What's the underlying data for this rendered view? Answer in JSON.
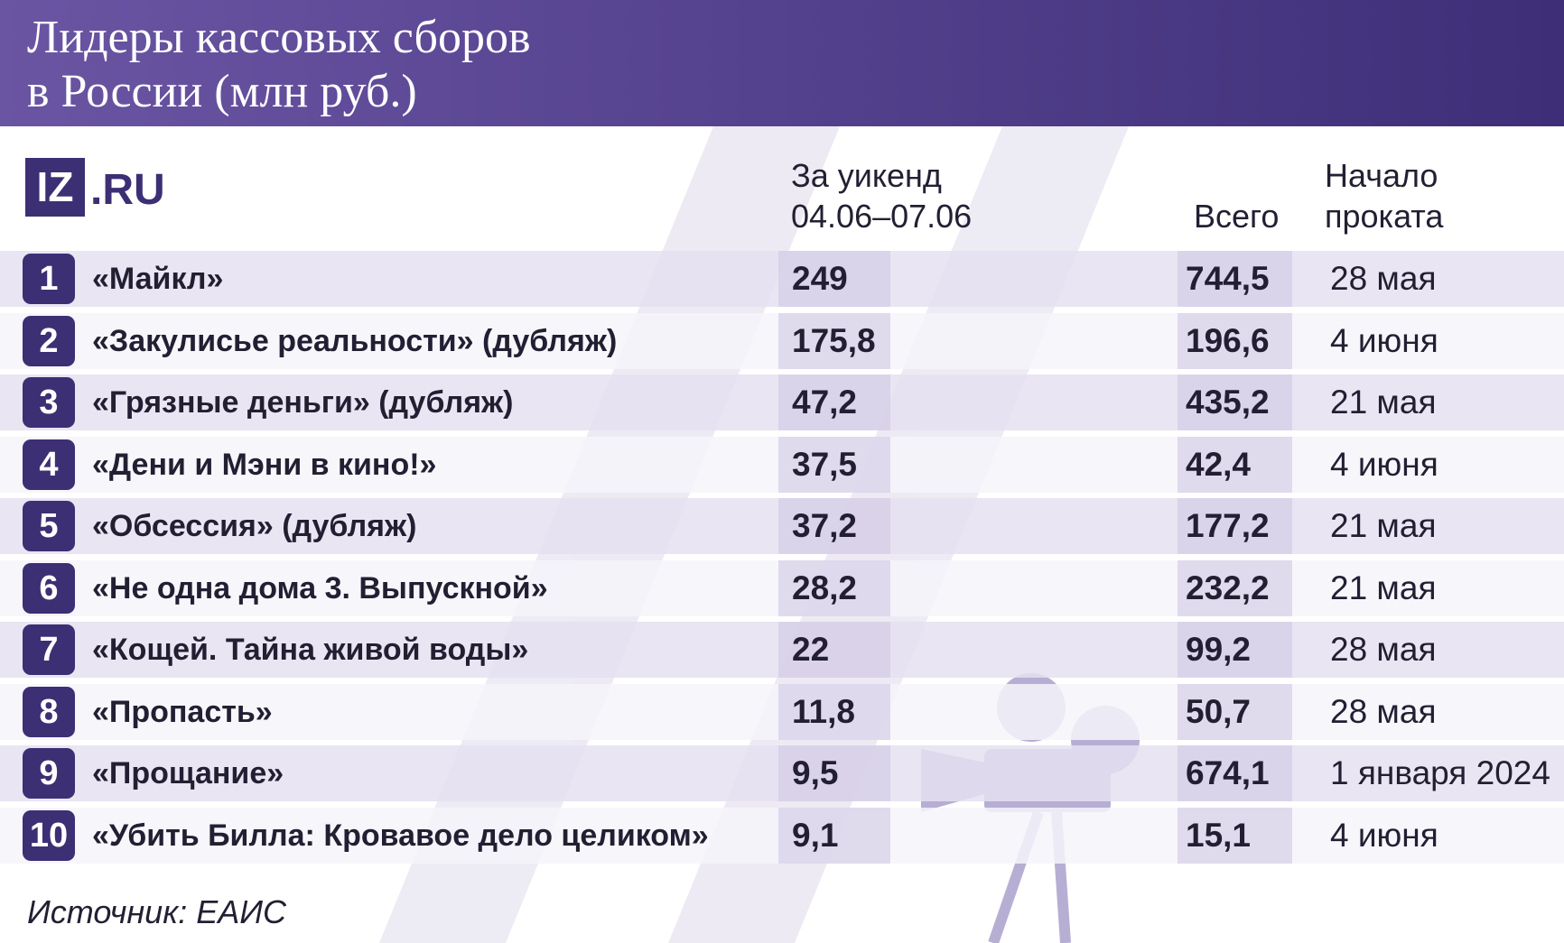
{
  "header": {
    "title_lines": [
      "Лидеры кассовых сборов",
      "в России (млн руб.)"
    ]
  },
  "logo": {
    "mark": "IZ",
    "domain": ".RU"
  },
  "table": {
    "columns": {
      "weekend": [
        "За уикенд",
        "04.06–07.06"
      ],
      "total": "Всего",
      "start": [
        "Начало",
        "проката"
      ]
    },
    "rows": [
      {
        "rank": 1,
        "title": "«Майкл»",
        "weekend": "249",
        "total": "744,5",
        "start": "28 мая"
      },
      {
        "rank": 2,
        "title": "«Закулисье реальности» (дубляж)",
        "weekend": "175,8",
        "total": "196,6",
        "start": "4 июня"
      },
      {
        "rank": 3,
        "title": "«Грязные деньги» (дубляж)",
        "weekend": "47,2",
        "total": "435,2",
        "start": "21 мая"
      },
      {
        "rank": 4,
        "title": "«Дени и Мэни в кино!»",
        "weekend": "37,5",
        "total": "42,4",
        "start": "4 июня"
      },
      {
        "rank": 5,
        "title": "«Обсессия» (дубляж)",
        "weekend": "37,2",
        "total": "177,2",
        "start": "21 мая"
      },
      {
        "rank": 6,
        "title": "«Не одна дома 3. Выпускной»",
        "weekend": "28,2",
        "total": "232,2",
        "start": "21 мая"
      },
      {
        "rank": 7,
        "title": "«Кощей. Тайна живой воды»",
        "weekend": "22",
        "total": "99,2",
        "start": "28 мая"
      },
      {
        "rank": 8,
        "title": "«Пропасть»",
        "weekend": "11,8",
        "total": "50,7",
        "start": "28 мая"
      },
      {
        "rank": 9,
        "title": "«Прощание»",
        "weekend": "9,5",
        "total": "674,1",
        "start": "1 января 2024"
      },
      {
        "rank": 10,
        "title": "«Убить Билла: Кровавое дело целиком»",
        "weekend": "9,1",
        "total": "15,1",
        "start": "4 июня"
      }
    ]
  },
  "footer": {
    "source": "Источник: ЕАИС"
  }
}
